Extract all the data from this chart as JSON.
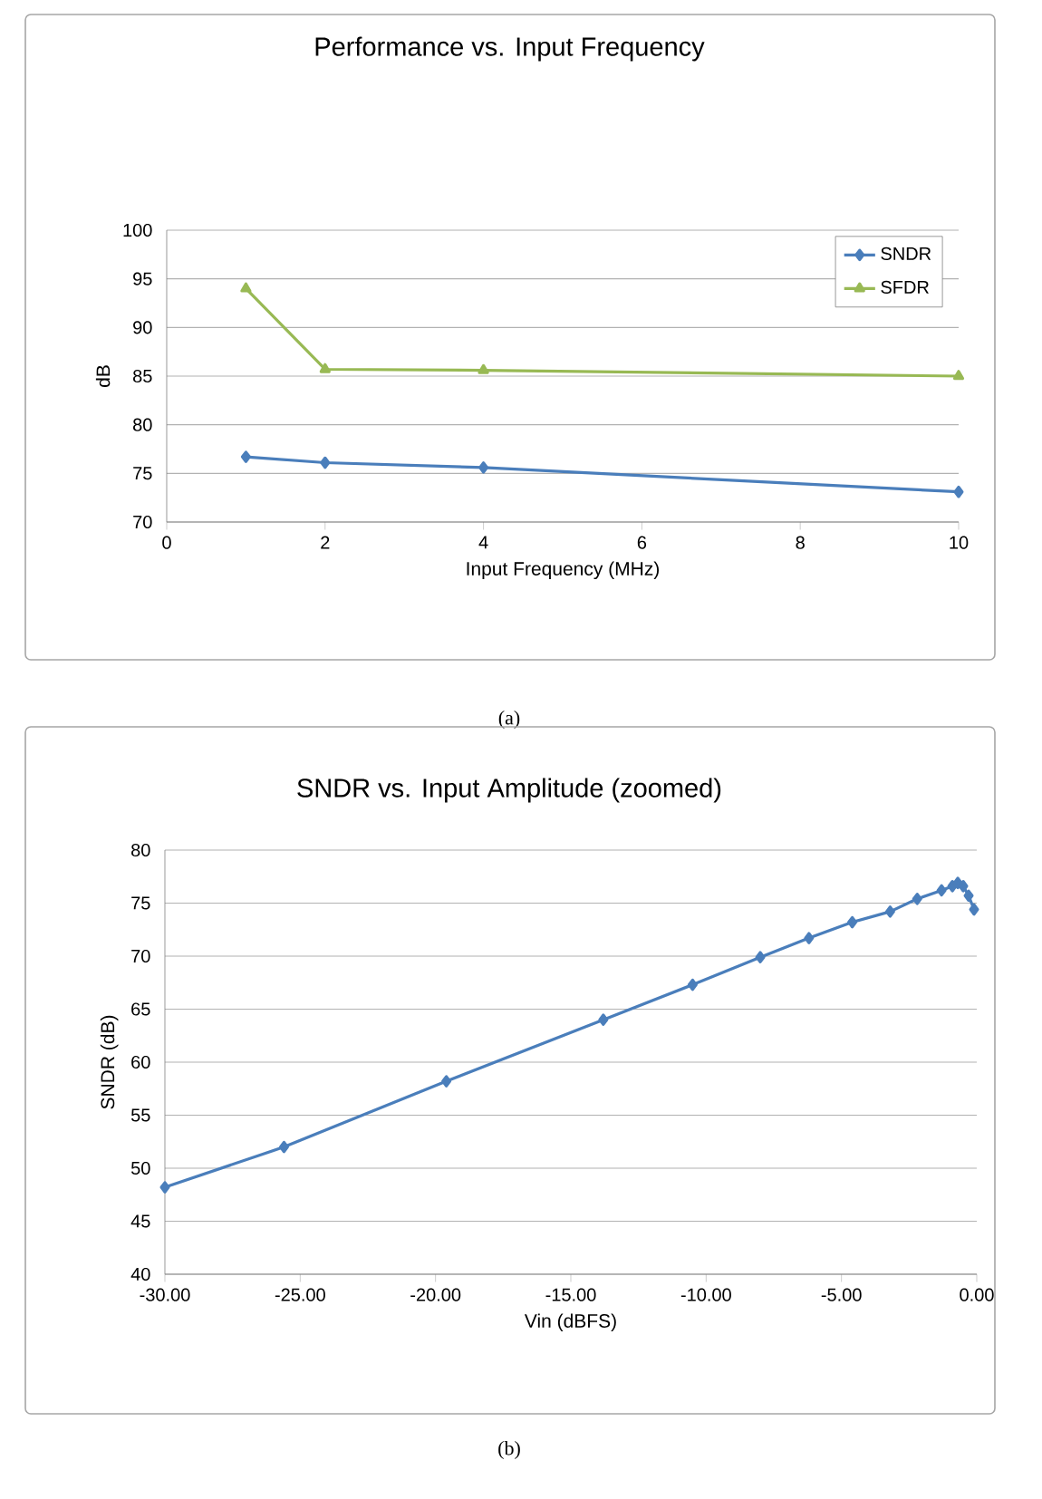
{
  "chart_data": [
    {
      "type": "line",
      "title": "Performance vs. Input Frequency",
      "xlabel": "Input Frequency (MHz)",
      "ylabel": "dB",
      "x": [
        1,
        2,
        4,
        10
      ],
      "series": [
        {
          "name": "SNDR",
          "color": "#4a7ebb",
          "marker": "diamond",
          "values": [
            76.7,
            76.1,
            75.6,
            73.1
          ]
        },
        {
          "name": "SFDR",
          "color": "#98b954",
          "marker": "triangle",
          "values": [
            94.0,
            85.7,
            85.6,
            85.0
          ]
        }
      ],
      "xlim": [
        0,
        10
      ],
      "xticks": [
        0,
        2,
        4,
        6,
        8,
        10
      ],
      "ylim": [
        70,
        100
      ],
      "yticks": [
        70,
        75,
        80,
        85,
        90,
        95,
        100
      ],
      "grid": "y",
      "legend": "top right",
      "annotations": [
        "(a)"
      ]
    },
    {
      "type": "line",
      "title": "SNDR vs. Input Amplitude (zoomed)",
      "xlabel": "Vin (dBFS)",
      "ylabel": "SNDR (dB)",
      "x": [
        -30.0,
        -25.6,
        -19.6,
        -13.8,
        -10.5,
        -8.0,
        -6.2,
        -4.6,
        -3.2,
        -2.2,
        -1.3,
        -0.9,
        -0.7,
        -0.5,
        -0.3,
        -0.1
      ],
      "series": [
        {
          "color": "#4a7ebb",
          "marker": "diamond",
          "values": [
            48.2,
            52.0,
            58.2,
            64.0,
            67.3,
            69.9,
            71.7,
            73.2,
            74.2,
            75.4,
            76.2,
            76.6,
            76.9,
            76.6,
            75.7,
            74.4
          ]
        }
      ],
      "xlim": [
        -30,
        0
      ],
      "xticks": [
        {
          "value": -30,
          "label": "-30.00"
        },
        {
          "value": -25,
          "label": "-25.00"
        },
        {
          "value": -20,
          "label": "-20.00"
        },
        {
          "value": -15,
          "label": "-15.00"
        },
        {
          "value": -10,
          "label": "-10.00"
        },
        {
          "value": -5,
          "label": "-5.00"
        },
        {
          "value": 0,
          "label": "0.00"
        }
      ],
      "ylim": [
        40,
        80
      ],
      "yticks": [
        40,
        45,
        50,
        55,
        60,
        65,
        70,
        75,
        80
      ],
      "grid": "y",
      "legend": false,
      "annotations": [
        "(b)"
      ]
    }
  ]
}
